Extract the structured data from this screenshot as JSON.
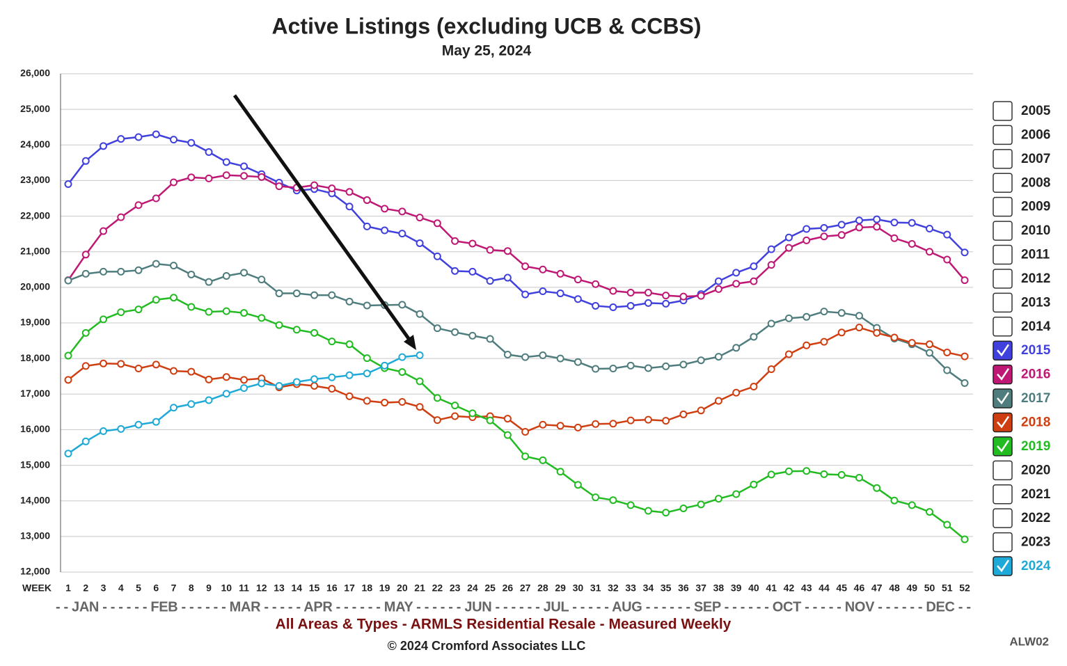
{
  "chart_data": {
    "type": "line",
    "title": "Active Listings (excluding UCB & CCBS)",
    "subtitle": "May 25, 2024",
    "x_axis_label": "WEEK",
    "month_axis": "- - JAN - - - - - - FEB - - - - - - MAR - - - - - APR - - - - - - MAY - - - - - - JUN - - - - - - JUL - - - - - AUG - - - - - - SEP - - - - - - OCT - - - - - NOV - - - - - - DEC - -",
    "footer": "All Areas & Types - ARMLS Residential Resale - Measured Weekly",
    "copyright": "© 2024 Cromford Associates LLC",
    "code": "ALW02",
    "categories": [
      "1",
      "2",
      "3",
      "4",
      "5",
      "6",
      "7",
      "8",
      "9",
      "10",
      "11",
      "12",
      "13",
      "14",
      "15",
      "16",
      "17",
      "18",
      "19",
      "20",
      "21",
      "22",
      "23",
      "24",
      "25",
      "26",
      "27",
      "28",
      "29",
      "30",
      "31",
      "32",
      "33",
      "34",
      "35",
      "36",
      "37",
      "38",
      "39",
      "40",
      "41",
      "42",
      "43",
      "44",
      "45",
      "46",
      "47",
      "48",
      "49",
      "50",
      "51",
      "52"
    ],
    "ylim": [
      12000,
      26000
    ],
    "yticks": [
      {
        "value": 12000,
        "label": "12,000"
      },
      {
        "value": 13000,
        "label": "13,000"
      },
      {
        "value": 14000,
        "label": "14,000"
      },
      {
        "value": 15000,
        "label": "15,000"
      },
      {
        "value": 16000,
        "label": "16,000"
      },
      {
        "value": 17000,
        "label": "17,000"
      },
      {
        "value": 18000,
        "label": "18,000"
      },
      {
        "value": 19000,
        "label": "19,000"
      },
      {
        "value": 20000,
        "label": "20,000"
      },
      {
        "value": 21000,
        "label": "21,000"
      },
      {
        "value": 22000,
        "label": "22,000"
      },
      {
        "value": 23000,
        "label": "23,000"
      },
      {
        "value": 24000,
        "label": "24,000"
      },
      {
        "value": 25000,
        "label": "25,000"
      },
      {
        "value": 26000,
        "label": "26,000"
      }
    ],
    "grid": true,
    "legend_unchecked": [
      "2005",
      "2006",
      "2007",
      "2008",
      "2009",
      "2010",
      "2011",
      "2012",
      "2013",
      "2014",
      "2020",
      "2021",
      "2022",
      "2023"
    ],
    "series": [
      {
        "name": "2015",
        "color": "#4040dd",
        "values": [
          22900,
          23550,
          23970,
          24170,
          24220,
          24300,
          24150,
          24060,
          23800,
          23520,
          23400,
          23180,
          22940,
          22720,
          22760,
          22640,
          22270,
          21710,
          21600,
          21510,
          21240,
          20870,
          20460,
          20440,
          20180,
          20270,
          19800,
          19890,
          19830,
          19670,
          19480,
          19440,
          19480,
          19560,
          19540,
          19630,
          19810,
          20170,
          20410,
          20590,
          21070,
          21400,
          21640,
          21670,
          21760,
          21880,
          21910,
          21820,
          21810,
          21650,
          21480,
          20980
        ]
      },
      {
        "name": "2016",
        "color": "#be1874",
        "values": [
          20200,
          20920,
          21580,
          21970,
          22310,
          22500,
          22950,
          23090,
          23060,
          23150,
          23130,
          23100,
          22840,
          22800,
          22870,
          22780,
          22680,
          22450,
          22210,
          22130,
          21960,
          21800,
          21300,
          21230,
          21050,
          21020,
          20590,
          20500,
          20380,
          20220,
          20090,
          19900,
          19850,
          19850,
          19770,
          19740,
          19760,
          19950,
          20100,
          20170,
          20630,
          21110,
          21320,
          21430,
          21470,
          21680,
          21700,
          21380,
          21220,
          21000,
          20780,
          20200
        ]
      },
      {
        "name": "2017",
        "color": "#4f7c7d",
        "values": [
          20190,
          20380,
          20440,
          20440,
          20480,
          20660,
          20610,
          20360,
          20150,
          20320,
          20410,
          20220,
          19830,
          19830,
          19780,
          19780,
          19600,
          19490,
          19500,
          19510,
          19250,
          18850,
          18740,
          18640,
          18550,
          18110,
          18040,
          18090,
          18000,
          17900,
          17710,
          17720,
          17800,
          17730,
          17780,
          17830,
          17950,
          18050,
          18300,
          18610,
          18980,
          19130,
          19170,
          19320,
          19280,
          19200,
          18860,
          18560,
          18400,
          18160,
          17670,
          17310
        ]
      },
      {
        "name": "2018",
        "color": "#cf3e10",
        "values": [
          17400,
          17790,
          17860,
          17850,
          17720,
          17830,
          17650,
          17630,
          17410,
          17480,
          17400,
          17440,
          17190,
          17280,
          17230,
          17150,
          16940,
          16810,
          16760,
          16780,
          16640,
          16270,
          16380,
          16350,
          16380,
          16310,
          15940,
          16140,
          16110,
          16060,
          16160,
          16170,
          16260,
          16280,
          16250,
          16430,
          16540,
          16810,
          17040,
          17210,
          17700,
          18120,
          18370,
          18470,
          18730,
          18870,
          18720,
          18590,
          18440,
          18400,
          18170,
          18060
        ]
      },
      {
        "name": "2019",
        "color": "#22bb22",
        "values": [
          18080,
          18720,
          19100,
          19300,
          19380,
          19650,
          19710,
          19450,
          19310,
          19330,
          19280,
          19140,
          18940,
          18810,
          18720,
          18480,
          18400,
          18010,
          17730,
          17620,
          17360,
          16890,
          16680,
          16460,
          16260,
          15850,
          15250,
          15140,
          14820,
          14450,
          14100,
          14020,
          13880,
          13720,
          13670,
          13790,
          13900,
          14060,
          14190,
          14460,
          14740,
          14830,
          14840,
          14750,
          14730,
          14650,
          14360,
          14010,
          13880,
          13690,
          13330,
          12920
        ]
      },
      {
        "name": "2024",
        "color": "#1fa9d6",
        "values": [
          15330,
          15670,
          15960,
          16020,
          16140,
          16220,
          16620,
          16720,
          16830,
          17010,
          17170,
          17300,
          17230,
          17340,
          17420,
          17470,
          17530,
          17580,
          17800,
          18040,
          18090,
          null,
          null,
          null,
          null,
          null,
          null,
          null,
          null,
          null,
          null,
          null,
          null,
          null,
          null,
          null,
          null,
          null,
          null,
          null,
          null,
          null,
          null,
          null,
          null,
          null,
          null,
          null,
          null,
          null,
          null,
          null
        ]
      }
    ]
  }
}
